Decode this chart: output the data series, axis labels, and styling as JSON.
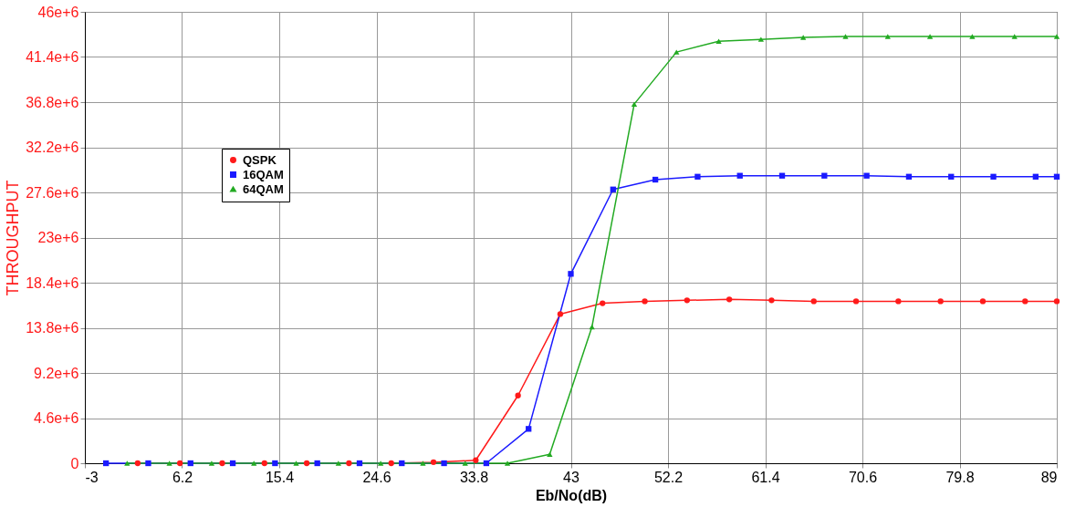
{
  "chart_data": {
    "type": "line",
    "xlabel": "Eb/No(dB)",
    "ylabel": "THROUGHPUT",
    "xlim": [
      -3,
      89
    ],
    "xticks": [
      -3,
      6.2,
      15.4,
      24.6,
      33.8,
      43,
      52.2,
      61.4,
      70.6,
      79.8,
      89
    ],
    "ylim": [
      0,
      46000000
    ],
    "yticks": [
      {
        "value": 0,
        "label": "0"
      },
      {
        "value": 4600000,
        "label": "4.6e+6"
      },
      {
        "value": 9200000,
        "label": "9.2e+6"
      },
      {
        "value": 13800000,
        "label": "13.8e+6"
      },
      {
        "value": 18400000,
        "label": "18.4e+6"
      },
      {
        "value": 23000000,
        "label": "23e+6"
      },
      {
        "value": 27600000,
        "label": "27.6e+6"
      },
      {
        "value": 32200000,
        "label": "32.2e+6"
      },
      {
        "value": 36800000,
        "label": "36.8e+6"
      },
      {
        "value": 41400000,
        "label": "41.4e+6"
      },
      {
        "value": 46000000,
        "label": "46e+6"
      }
    ],
    "grid": true,
    "legend": "top left",
    "line_style": "solid",
    "series": [
      {
        "name": "QSPK",
        "color": "#ff1a1a",
        "marker": "circle",
        "x": [
          2,
          6,
          10,
          14,
          18,
          22,
          26,
          30,
          34,
          38,
          42,
          46,
          50,
          54,
          58,
          62,
          66,
          70,
          74,
          78,
          82,
          86,
          89
        ],
        "values": [
          0,
          0,
          0,
          0,
          0,
          0,
          0,
          100000,
          300000,
          6900000,
          15200000,
          16300000,
          16500000,
          16600000,
          16700000,
          16600000,
          16500000,
          16500000,
          16500000,
          16500000,
          16500000,
          16500000,
          16500000
        ]
      },
      {
        "name": "16QAM",
        "color": "#1a1aff",
        "marker": "square",
        "x": [
          -1,
          3,
          7,
          11,
          15,
          19,
          23,
          27,
          31,
          35,
          39,
          43,
          47,
          51,
          55,
          59,
          63,
          67,
          71,
          75,
          79,
          83,
          87,
          89
        ],
        "values": [
          0,
          0,
          0,
          0,
          0,
          0,
          0,
          0,
          0,
          0,
          3500000,
          19300000,
          27900000,
          28900000,
          29200000,
          29300000,
          29300000,
          29300000,
          29300000,
          29200000,
          29200000,
          29200000,
          29200000,
          29200000
        ]
      },
      {
        "name": "64QAM",
        "color": "#22aa22",
        "marker": "triangle",
        "x": [
          1,
          5,
          9,
          13,
          17,
          21,
          25,
          29,
          33,
          37,
          41,
          45,
          49,
          53,
          57,
          61,
          65,
          69,
          73,
          77,
          81,
          85,
          89
        ],
        "values": [
          0,
          0,
          0,
          0,
          0,
          0,
          0,
          0,
          0,
          0,
          900000,
          13900000,
          36600000,
          41900000,
          43000000,
          43200000,
          43400000,
          43500000,
          43500000,
          43500000,
          43500000,
          43500000,
          43500000
        ]
      }
    ]
  }
}
